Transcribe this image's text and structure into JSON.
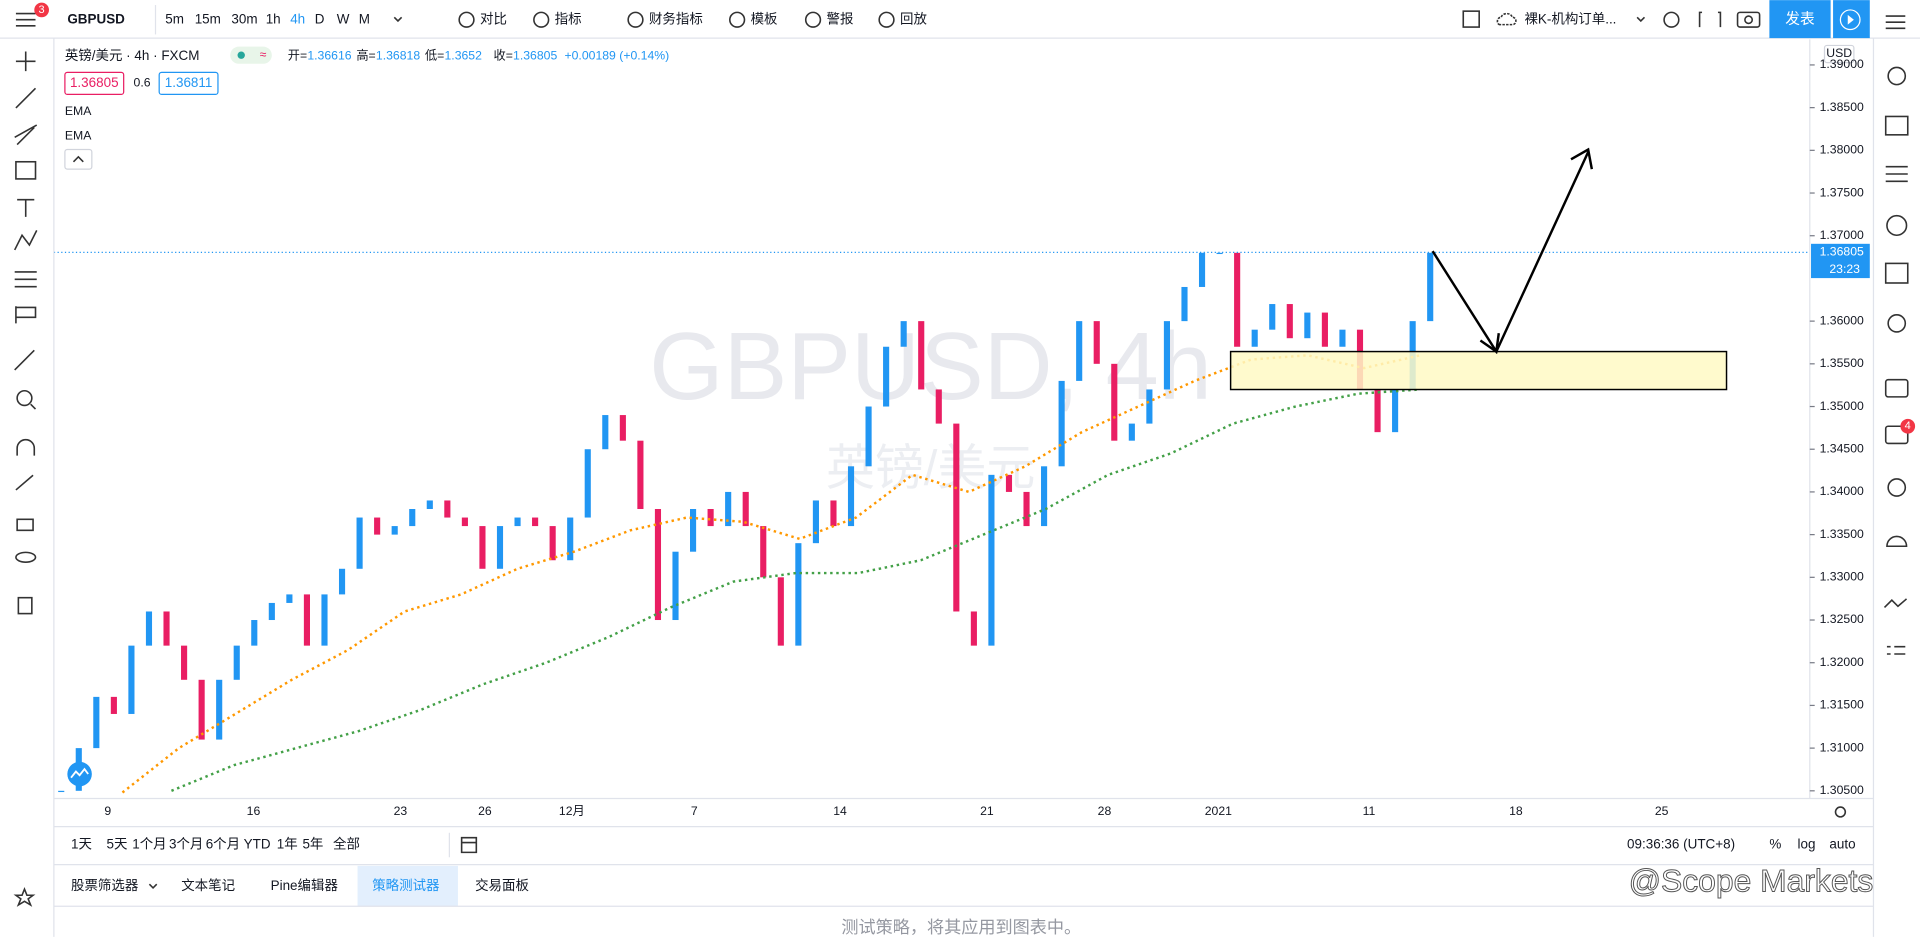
{
  "toolbar": {
    "symbol": "GBPUSD",
    "intervals": [
      "5m",
      "15m",
      "30m",
      "1h",
      "4h",
      "D",
      "W",
      "M"
    ],
    "items": [
      "对比",
      "指标",
      "财务指标",
      "模板",
      "警报",
      "回放"
    ],
    "layout": "裸K-机构订单...",
    "publish": "发表",
    "menu_badge": "3"
  },
  "legend": {
    "title": "英镑/美元 · 4h · FXCM",
    "open_label": "开=",
    "open": 1.36616,
    "high_label": "高=",
    "high": 1.36818,
    "low_label": "低=",
    "low": 1.3652,
    "close_label": "收=",
    "close": 1.36805,
    "change": "+0.00189 (+0.14%)",
    "bid": 1.36805,
    "spread": 0.6,
    "ask": 1.36811
  },
  "watermark": {
    "symbol": "GBPUSD, 4h",
    "name": "英镑/美元"
  },
  "chart_data": {
    "type": "candlestick",
    "currency": "USD",
    "up_color": "#2196f3",
    "down_color": "#e91e63",
    "values": [
      1.305,
      1.31,
      1.316,
      1.314,
      1.322,
      1.326,
      1.322,
      1.318,
      1.311,
      1.318,
      1.322,
      1.325,
      1.327,
      1.328,
      1.322,
      1.328,
      1.331,
      1.337,
      1.335,
      1.336,
      1.338,
      1.339,
      1.337,
      1.336,
      1.331,
      1.336,
      1.337,
      1.336,
      1.332,
      1.337,
      1.345,
      1.349,
      1.346,
      1.338,
      1.325,
      1.333,
      1.338,
      1.336,
      1.34,
      1.336,
      1.33,
      1.322,
      1.334,
      1.339,
      1.336,
      1.343,
      1.35,
      1.357,
      1.36,
      1.352,
      1.348,
      1.326,
      1.322,
      1.342,
      1.34,
      1.336,
      1.343,
      1.353,
      1.36,
      1.355,
      1.346,
      1.348,
      1.352,
      1.36,
      1.364,
      1.368,
      1.368,
      1.357,
      1.359,
      1.362,
      1.358,
      1.361,
      1.357,
      1.359,
      1.352,
      1.347,
      1.352,
      1.36,
      1.368
    ],
    "lines": [
      {
        "name": "EMA",
        "color": "#ff9800",
        "values": [
          1.3048,
          1.31,
          1.314,
          1.318,
          1.3215,
          1.326,
          1.328,
          1.331,
          1.333,
          1.3355,
          1.337,
          1.3365,
          1.3345,
          1.337,
          1.342,
          1.34,
          1.343,
          1.347,
          1.35,
          1.353,
          1.3555,
          1.356,
          1.3545,
          1.356
        ]
      },
      {
        "name": "EMA",
        "color": "#43a047",
        "values": [
          1.305,
          1.308,
          1.31,
          1.312,
          1.3145,
          1.3175,
          1.32,
          1.323,
          1.3265,
          1.3295,
          1.3305,
          1.3305,
          1.332,
          1.335,
          1.338,
          1.342,
          1.3445,
          1.348,
          1.35,
          1.3515,
          1.352
        ]
      }
    ],
    "ylim": [
      1.3041,
      1.393
    ],
    "yticks": [
      {
        "value": 1.305,
        "label": "1.30500"
      },
      {
        "value": 1.31,
        "label": "1.31000"
      },
      {
        "value": 1.315,
        "label": "1.31500"
      },
      {
        "value": 1.32,
        "label": "1.32000"
      },
      {
        "value": 1.325,
        "label": "1.32500"
      },
      {
        "value": 1.33,
        "label": "1.33000"
      },
      {
        "value": 1.335,
        "label": "1.33500"
      },
      {
        "value": 1.34,
        "label": "1.34000"
      },
      {
        "value": 1.345,
        "label": "1.34500"
      },
      {
        "value": 1.35,
        "label": "1.35000"
      },
      {
        "value": 1.355,
        "label": "1.35500"
      },
      {
        "value": 1.36,
        "label": "1.36000"
      },
      {
        "value": 1.37,
        "label": "1.37000"
      },
      {
        "value": 1.375,
        "label": "1.37500"
      },
      {
        "value": 1.38,
        "label": "1.38000"
      },
      {
        "value": 1.385,
        "label": "1.38500"
      },
      {
        "value": 1.39,
        "label": "1.39000"
      }
    ],
    "x_labels": [
      "9",
      "16",
      "23",
      "26",
      "12月",
      "7",
      "14",
      "21",
      "28",
      "2021",
      "11",
      "18",
      "25"
    ],
    "last_price": {
      "value": 1.36805,
      "label": "1.36805",
      "countdown": "23:23"
    }
  },
  "ranges": [
    "1天",
    "5天",
    "1个月",
    "3个月",
    "6个月",
    "YTD",
    "1年",
    "5年",
    "全部"
  ],
  "clock": "09:36:36 (UTC+8)",
  "scale_options": [
    "%",
    "log",
    "auto"
  ],
  "tabs": [
    "股票筛选器",
    "文本笔记",
    "Pine编辑器",
    "策略测试器",
    "交易面板"
  ],
  "panel_text": "测试策略，将其应用到图表中。",
  "overlay_watermark": "@Scope Markets",
  "chat_badge": "4"
}
